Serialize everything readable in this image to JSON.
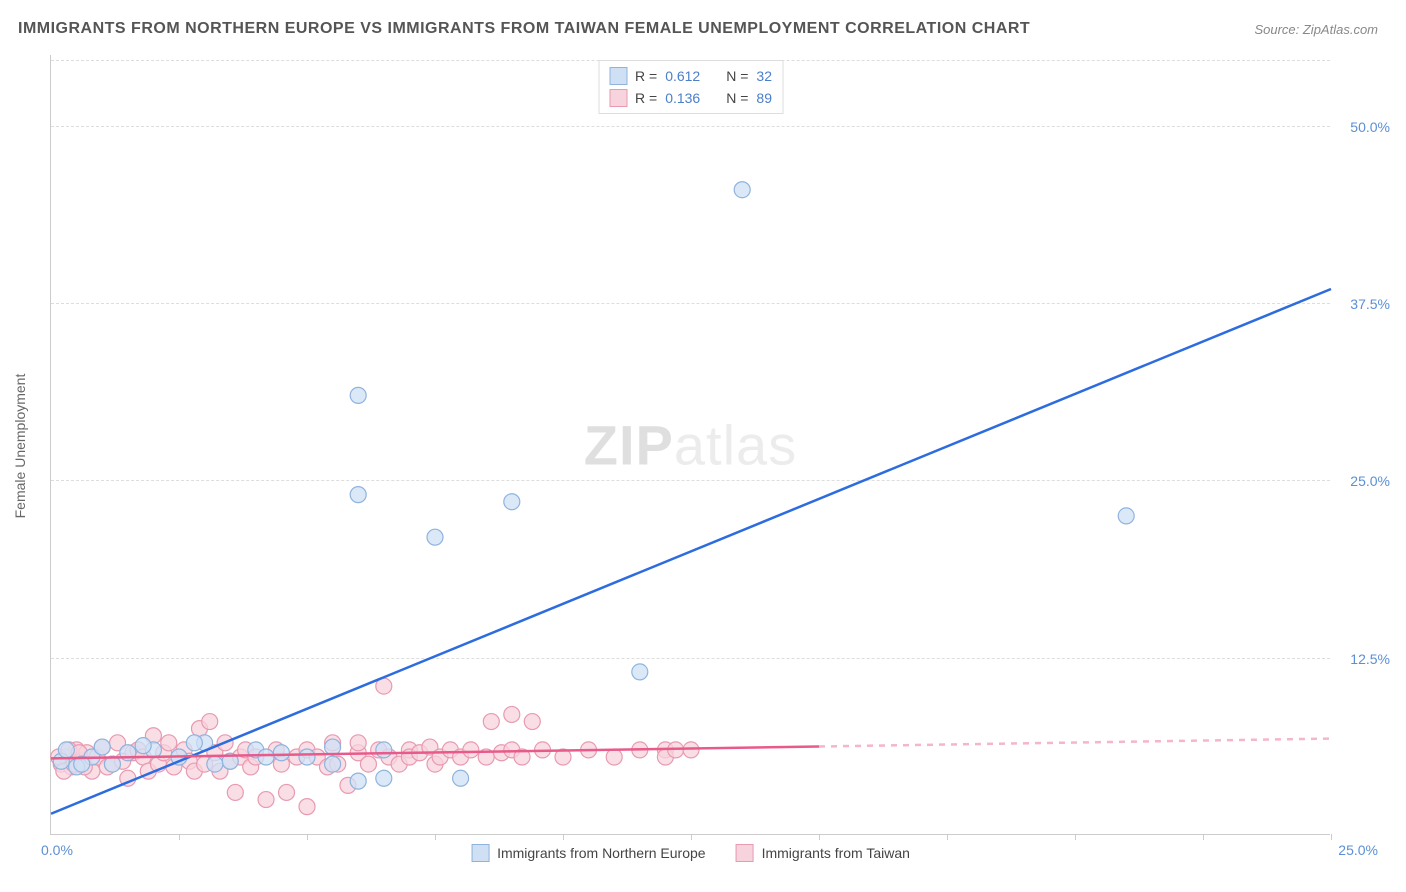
{
  "title": "IMMIGRANTS FROM NORTHERN EUROPE VS IMMIGRANTS FROM TAIWAN FEMALE UNEMPLOYMENT CORRELATION CHART",
  "source": "Source: ZipAtlas.com",
  "watermark_zip": "ZIP",
  "watermark_atlas": "atlas",
  "y_axis_label": "Female Unemployment",
  "chart": {
    "type": "scatter",
    "xlim": [
      0,
      25
    ],
    "ylim": [
      0,
      55
    ],
    "y_ticks": [
      12.5,
      25.0,
      37.5,
      50.0
    ],
    "y_tick_labels": [
      "12.5%",
      "25.0%",
      "37.5%",
      "50.0%"
    ],
    "x_ticks": [
      2.5,
      5,
      7.5,
      10,
      12.5,
      15,
      17.5,
      20,
      22.5,
      25
    ],
    "x_origin_label": "0.0%",
    "x_max_label": "25.0%",
    "background_color": "#ffffff",
    "grid_color": "#dddddd",
    "axis_color": "#cccccc"
  },
  "series": [
    {
      "name": "Immigrants from Northern Europe",
      "marker_color_fill": "#cfe0f5",
      "marker_color_stroke": "#8fb3dd",
      "marker_radius": 8,
      "line_color": "#2d6cdf",
      "line_width": 2.5,
      "r_value": "0.612",
      "n_value": "32",
      "trend": {
        "x1": 0,
        "y1": 1.5,
        "x2": 25,
        "y2": 38.5,
        "solid_until_x": 25
      },
      "points": [
        [
          0.2,
          5.2
        ],
        [
          0.3,
          6.0
        ],
        [
          0.5,
          4.8
        ],
        [
          0.8,
          5.5
        ],
        [
          1.0,
          6.2
        ],
        [
          1.2,
          5.0
        ],
        [
          1.5,
          5.8
        ],
        [
          2.0,
          6.0
        ],
        [
          2.5,
          5.5
        ],
        [
          3.0,
          6.5
        ],
        [
          3.5,
          5.2
        ],
        [
          4.0,
          6.0
        ],
        [
          4.5,
          5.8
        ],
        [
          5.0,
          5.5
        ],
        [
          5.5,
          6.2
        ],
        [
          6.0,
          3.8
        ],
        [
          6.5,
          4.0
        ],
        [
          5.5,
          5.0
        ],
        [
          6.5,
          6.0
        ],
        [
          8.0,
          4.0
        ],
        [
          6.0,
          24.0
        ],
        [
          6.0,
          31.0
        ],
        [
          7.5,
          21.0
        ],
        [
          9.0,
          23.5
        ],
        [
          11.5,
          11.5
        ],
        [
          13.5,
          45.5
        ],
        [
          21.0,
          22.5
        ],
        [
          2.8,
          6.5
        ],
        [
          3.2,
          5.0
        ],
        [
          4.2,
          5.5
        ],
        [
          1.8,
          6.3
        ],
        [
          0.6,
          5.0
        ]
      ]
    },
    {
      "name": "Immigrants from Taiwan",
      "marker_color_fill": "#f7d3dd",
      "marker_color_stroke": "#e89ab0",
      "marker_radius": 8,
      "line_color": "#e85a8a",
      "line_width": 2.5,
      "r_value": "0.136",
      "n_value": "89",
      "trend": {
        "x1": 0,
        "y1": 5.4,
        "x2": 25,
        "y2": 6.8,
        "solid_until_x": 15
      },
      "points": [
        [
          0.2,
          5.0
        ],
        [
          0.3,
          5.5
        ],
        [
          0.4,
          4.8
        ],
        [
          0.5,
          6.0
        ],
        [
          0.6,
          5.2
        ],
        [
          0.7,
          5.8
        ],
        [
          0.8,
          4.5
        ],
        [
          0.9,
          5.5
        ],
        [
          1.0,
          6.2
        ],
        [
          1.1,
          4.8
        ],
        [
          1.2,
          5.0
        ],
        [
          1.3,
          6.5
        ],
        [
          1.4,
          5.2
        ],
        [
          1.5,
          4.0
        ],
        [
          1.6,
          5.8
        ],
        [
          1.7,
          6.0
        ],
        [
          1.8,
          5.5
        ],
        [
          1.9,
          4.5
        ],
        [
          2.0,
          7.0
        ],
        [
          2.1,
          5.0
        ],
        [
          2.2,
          5.8
        ],
        [
          2.3,
          6.5
        ],
        [
          2.4,
          4.8
        ],
        [
          2.5,
          5.5
        ],
        [
          2.6,
          6.0
        ],
        [
          2.7,
          5.2
        ],
        [
          2.8,
          4.5
        ],
        [
          2.9,
          7.5
        ],
        [
          3.0,
          5.0
        ],
        [
          3.1,
          8.0
        ],
        [
          3.2,
          5.8
        ],
        [
          3.3,
          4.5
        ],
        [
          3.4,
          6.5
        ],
        [
          3.5,
          5.2
        ],
        [
          3.6,
          3.0
        ],
        [
          3.7,
          5.5
        ],
        [
          3.8,
          6.0
        ],
        [
          3.9,
          4.8
        ],
        [
          4.0,
          5.5
        ],
        [
          4.2,
          2.5
        ],
        [
          4.4,
          6.0
        ],
        [
          4.5,
          5.0
        ],
        [
          4.6,
          3.0
        ],
        [
          4.8,
          5.5
        ],
        [
          5.0,
          2.0
        ],
        [
          5.0,
          6.0
        ],
        [
          5.2,
          5.5
        ],
        [
          5.4,
          4.8
        ],
        [
          5.5,
          6.5
        ],
        [
          5.6,
          5.0
        ],
        [
          5.8,
          3.5
        ],
        [
          6.0,
          5.8
        ],
        [
          6.0,
          6.5
        ],
        [
          6.2,
          5.0
        ],
        [
          6.4,
          6.0
        ],
        [
          6.5,
          10.5
        ],
        [
          6.6,
          5.5
        ],
        [
          6.8,
          5.0
        ],
        [
          7.0,
          6.0
        ],
        [
          7.0,
          5.5
        ],
        [
          7.2,
          5.8
        ],
        [
          7.4,
          6.2
        ],
        [
          7.5,
          5.0
        ],
        [
          7.6,
          5.5
        ],
        [
          7.8,
          6.0
        ],
        [
          8.0,
          5.5
        ],
        [
          8.2,
          6.0
        ],
        [
          8.5,
          5.5
        ],
        [
          8.6,
          8.0
        ],
        [
          8.8,
          5.8
        ],
        [
          9.0,
          8.5
        ],
        [
          9.0,
          6.0
        ],
        [
          9.2,
          5.5
        ],
        [
          9.4,
          8.0
        ],
        [
          9.6,
          6.0
        ],
        [
          10.0,
          5.5
        ],
        [
          10.5,
          6.0
        ],
        [
          11.0,
          5.5
        ],
        [
          11.5,
          6.0
        ],
        [
          12.0,
          6.0
        ],
        [
          12.0,
          5.5
        ],
        [
          12.2,
          6.0
        ],
        [
          12.5,
          6.0
        ],
        [
          0.15,
          5.5
        ],
        [
          0.25,
          4.5
        ],
        [
          0.35,
          6.0
        ],
        [
          0.45,
          5.0
        ],
        [
          0.55,
          5.8
        ],
        [
          0.65,
          4.8
        ]
      ]
    }
  ],
  "legend_top": {
    "r_label": "R =",
    "n_label": "N ="
  },
  "legend_bottom": [
    {
      "label": "Immigrants from Northern Europe",
      "fill": "#cfe0f5",
      "stroke": "#8fb3dd"
    },
    {
      "label": "Immigrants from Taiwan",
      "fill": "#f7d3dd",
      "stroke": "#e89ab0"
    }
  ]
}
